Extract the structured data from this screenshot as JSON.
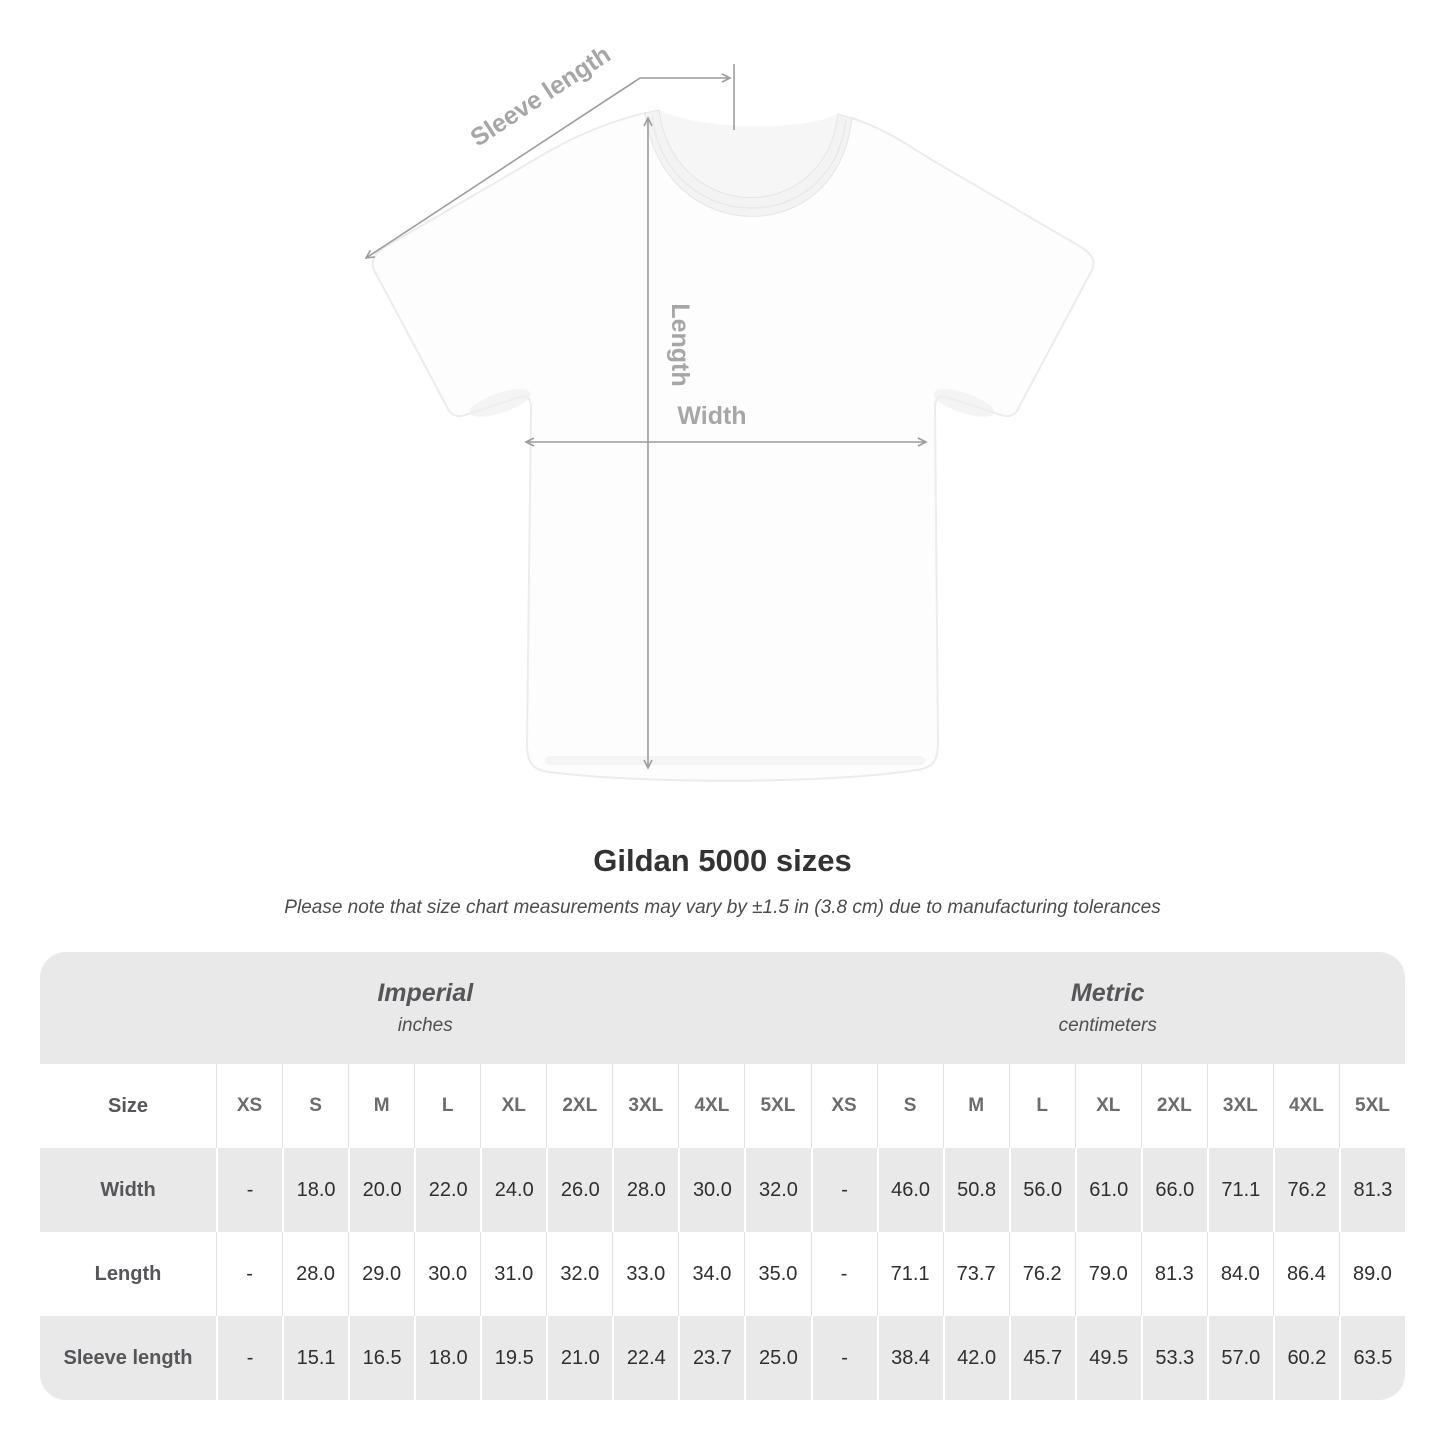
{
  "diagram": {
    "sleeve_length_label": "Sleeve length",
    "length_label": "Length",
    "width_label": "Width"
  },
  "title": "Gildan 5000 sizes",
  "subtitle": "Please note that size chart measurements may vary by ±1.5 in (3.8 cm) due to manufacturing tolerances",
  "colors": {
    "table_band_gray": "#e9e9e9",
    "arrow_gray": "#9c9c9c",
    "diagram_label_gray": "#a6a6a6"
  },
  "chart_data": {
    "type": "table",
    "title": "Gildan 5000 sizes",
    "size_column_header": "Size",
    "sizes": [
      "XS",
      "S",
      "M",
      "L",
      "XL",
      "2XL",
      "3XL",
      "4XL",
      "5XL"
    ],
    "unit_groups": [
      {
        "name": "Imperial",
        "unit": "inches"
      },
      {
        "name": "Metric",
        "unit": "centimeters"
      }
    ],
    "measurements": [
      {
        "label": "Width",
        "imperial": [
          "-",
          "18.0",
          "20.0",
          "22.0",
          "24.0",
          "26.0",
          "28.0",
          "30.0",
          "32.0"
        ],
        "metric": [
          "-",
          "46.0",
          "50.8",
          "56.0",
          "61.0",
          "66.0",
          "71.1",
          "76.2",
          "81.3"
        ]
      },
      {
        "label": "Length",
        "imperial": [
          "-",
          "28.0",
          "29.0",
          "30.0",
          "31.0",
          "32.0",
          "33.0",
          "34.0",
          "35.0"
        ],
        "metric": [
          "-",
          "71.1",
          "73.7",
          "76.2",
          "79.0",
          "81.3",
          "84.0",
          "86.4",
          "89.0"
        ]
      },
      {
        "label": "Sleeve length",
        "imperial": [
          "-",
          "15.1",
          "16.5",
          "18.0",
          "19.5",
          "21.0",
          "22.4",
          "23.7",
          "25.0"
        ],
        "metric": [
          "-",
          "38.4",
          "42.0",
          "45.7",
          "49.5",
          "53.3",
          "57.0",
          "60.2",
          "63.5"
        ]
      }
    ]
  }
}
